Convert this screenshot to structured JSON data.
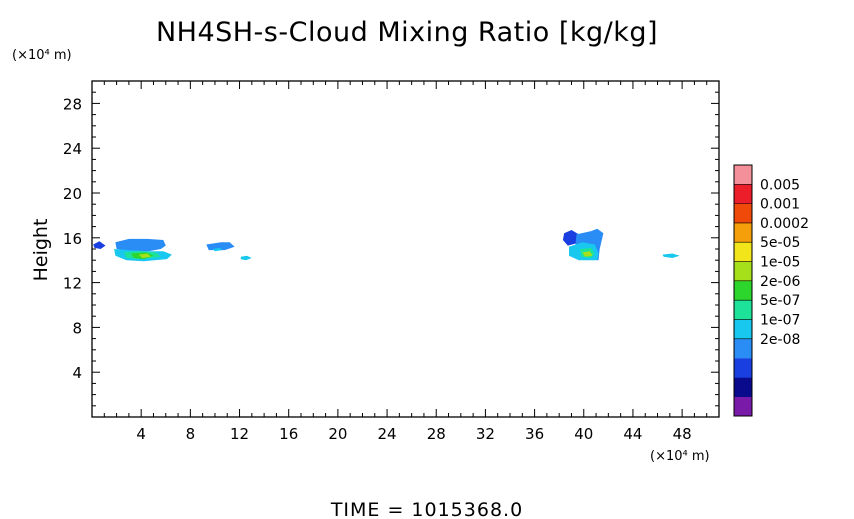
{
  "chart_data": {
    "type": "heatmap",
    "title": "NH4SH-s-Cloud Mixing Ratio [kg/kg]",
    "ylabel": "Height",
    "y_unit": "(×10⁴ m)",
    "x_unit": "(×10⁴ m)",
    "xlim": [
      0,
      51
    ],
    "ylim": [
      0,
      30
    ],
    "x_ticks": [
      4,
      8,
      12,
      16,
      20,
      24,
      28,
      32,
      36,
      40,
      44,
      48
    ],
    "y_ticks": [
      4,
      8,
      12,
      16,
      20,
      24,
      28
    ],
    "footer": "TIME = 1015368.0",
    "colorbar": {
      "labels": [
        "0.005",
        "0.001",
        "0.0002",
        "5e-05",
        "1e-05",
        "2e-06",
        "5e-07",
        "1e-07",
        "2e-08"
      ],
      "colors": [
        "#7a1aa8",
        "#0a0a8c",
        "#1a3fe0",
        "#2a8cf5",
        "#18c8ee",
        "#1de39a",
        "#2cd62c",
        "#a6e01a",
        "#f2e61a",
        "#f5a00a",
        "#f04a0a",
        "#ec1e2a",
        "#f4909a"
      ]
    },
    "regions": [
      {
        "level": 2,
        "pts": [
          [
            0.1,
            15.4
          ],
          [
            0.6,
            15.7
          ],
          [
            1.1,
            15.3
          ],
          [
            0.7,
            15.0
          ],
          [
            0.2,
            15.1
          ]
        ]
      },
      {
        "level": 3,
        "pts": [
          [
            1.9,
            15.6
          ],
          [
            3.0,
            15.9
          ],
          [
            4.5,
            15.9
          ],
          [
            5.8,
            15.8
          ],
          [
            6.0,
            15.3
          ],
          [
            5.6,
            15.0
          ],
          [
            4.6,
            14.8
          ],
          [
            3.0,
            14.8
          ],
          [
            2.0,
            15.0
          ]
        ]
      },
      {
        "level": 4,
        "pts": [
          [
            1.8,
            15.0
          ],
          [
            3.0,
            14.9
          ],
          [
            4.6,
            14.8
          ],
          [
            5.8,
            14.8
          ],
          [
            6.5,
            14.5
          ],
          [
            6.1,
            14.1
          ],
          [
            4.2,
            13.9
          ],
          [
            2.8,
            14.0
          ],
          [
            1.9,
            14.4
          ]
        ]
      },
      {
        "level": 5,
        "pts": [
          [
            2.6,
            14.7
          ],
          [
            3.8,
            14.8
          ],
          [
            5.2,
            14.7
          ],
          [
            5.6,
            14.3
          ],
          [
            4.0,
            14.1
          ],
          [
            2.8,
            14.2
          ]
        ]
      },
      {
        "level": 6,
        "pts": [
          [
            3.2,
            14.6
          ],
          [
            4.4,
            14.7
          ],
          [
            5.0,
            14.4
          ],
          [
            4.2,
            14.1
          ],
          [
            3.4,
            14.2
          ]
        ]
      },
      {
        "level": 7,
        "pts": [
          [
            3.8,
            14.5
          ],
          [
            4.5,
            14.6
          ],
          [
            4.8,
            14.3
          ],
          [
            4.1,
            14.2
          ]
        ]
      },
      {
        "level": 3,
        "pts": [
          [
            9.3,
            15.4
          ],
          [
            10.5,
            15.6
          ],
          [
            11.2,
            15.6
          ],
          [
            11.6,
            15.2
          ],
          [
            10.8,
            14.9
          ],
          [
            9.5,
            14.9
          ]
        ]
      },
      {
        "level": 4,
        "pts": [
          [
            9.8,
            15.0
          ],
          [
            10.4,
            15.1
          ],
          [
            10.6,
            14.9
          ],
          [
            10.0,
            14.8
          ]
        ]
      },
      {
        "level": 4,
        "pts": [
          [
            12.1,
            14.3
          ],
          [
            12.6,
            14.4
          ],
          [
            13.0,
            14.2
          ],
          [
            12.5,
            14.0
          ],
          [
            12.1,
            14.1
          ]
        ]
      },
      {
        "level": 2,
        "pts": [
          [
            38.4,
            16.4
          ],
          [
            39.0,
            16.7
          ],
          [
            39.6,
            16.3
          ],
          [
            39.4,
            15.5
          ],
          [
            38.7,
            15.3
          ],
          [
            38.3,
            15.8
          ]
        ]
      },
      {
        "level": 3,
        "pts": [
          [
            39.4,
            16.3
          ],
          [
            40.6,
            16.6
          ],
          [
            41.1,
            16.8
          ],
          [
            41.6,
            16.4
          ],
          [
            41.3,
            15.0
          ],
          [
            41.2,
            14.0
          ],
          [
            40.3,
            14.1
          ],
          [
            39.3,
            15.0
          ]
        ]
      },
      {
        "level": 4,
        "pts": [
          [
            38.8,
            15.2
          ],
          [
            39.9,
            15.6
          ],
          [
            40.9,
            15.4
          ],
          [
            41.2,
            14.6
          ],
          [
            41.1,
            14.0
          ],
          [
            39.6,
            14.0
          ],
          [
            38.8,
            14.4
          ]
        ]
      },
      {
        "level": 5,
        "pts": [
          [
            39.7,
            15.0
          ],
          [
            40.6,
            15.1
          ],
          [
            40.9,
            14.6
          ],
          [
            40.6,
            14.2
          ],
          [
            39.8,
            14.3
          ]
        ]
      },
      {
        "level": 7,
        "pts": [
          [
            39.9,
            14.7
          ],
          [
            40.5,
            14.8
          ],
          [
            40.7,
            14.4
          ],
          [
            40.1,
            14.3
          ]
        ]
      },
      {
        "level": 4,
        "pts": [
          [
            46.4,
            14.5
          ],
          [
            47.2,
            14.6
          ],
          [
            47.8,
            14.4
          ],
          [
            47.2,
            14.2
          ],
          [
            46.5,
            14.3
          ]
        ]
      }
    ]
  }
}
